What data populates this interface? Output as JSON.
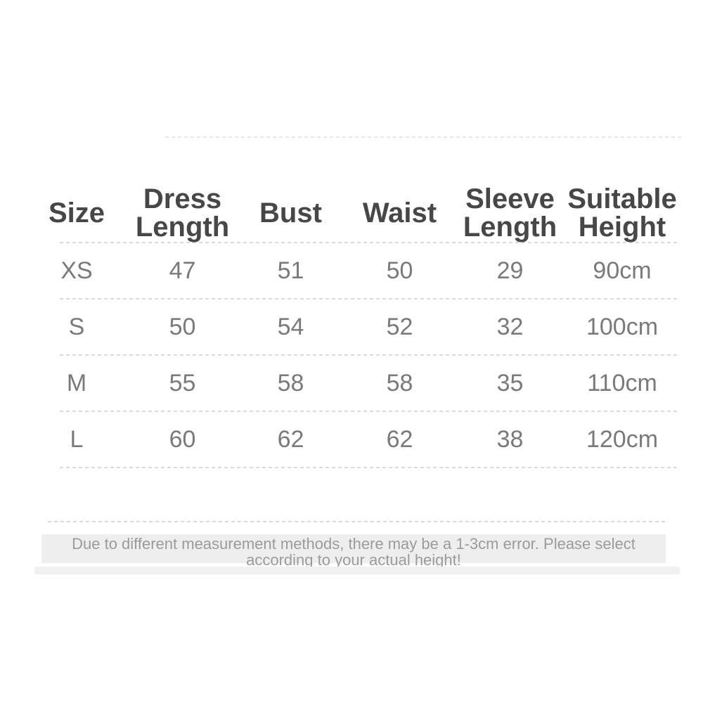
{
  "chart_data": {
    "type": "table",
    "title": "",
    "columns": [
      "Size",
      "Dress Length",
      "Bust",
      "Waist",
      "Sleeve Length",
      "Suitable Height"
    ],
    "rows": [
      [
        "XS",
        "47",
        "51",
        "50",
        "29",
        "90cm"
      ],
      [
        "S",
        "50",
        "54",
        "52",
        "32",
        "100cm"
      ],
      [
        "M",
        "55",
        "58",
        "58",
        "35",
        "110cm"
      ],
      [
        "L",
        "60",
        "62",
        "62",
        "38",
        "120cm"
      ]
    ],
    "units": "cm",
    "layout_hints": {
      "grid": "dashed horizontal row dividers only",
      "header_style": "semibold dark gray",
      "body_style": "regular medium gray"
    }
  },
  "note": {
    "lines": [
      "Due to different measurement methods, there may be a 1-3cm error. Please select",
      "according to your actual height!"
    ]
  },
  "colors": {
    "header_text": "#474747",
    "body_text": "#7a7a7a",
    "divider": "#d9d9d9",
    "faint_divider": "#e7e7e7",
    "note_bg": "#eeeeee",
    "note_text": "#9b9b9b",
    "strip_bg": "#f1f1f1",
    "page_bg": "#ffffff"
  }
}
